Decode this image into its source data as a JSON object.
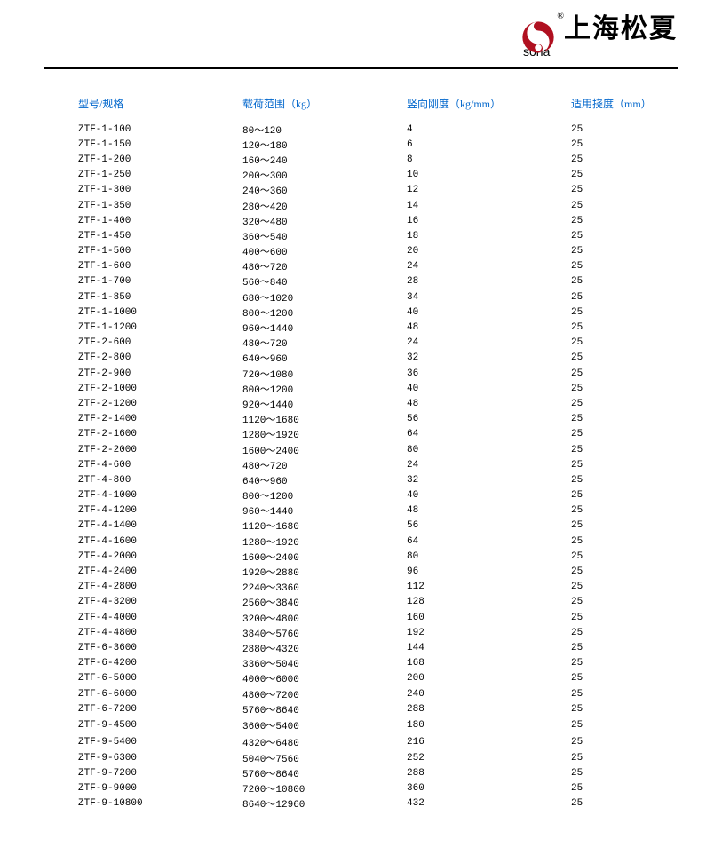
{
  "header": {
    "brand_cn": "上海松夏",
    "brand_en": "sona",
    "reg_mark": "®",
    "logo_color": "#b01020"
  },
  "table": {
    "header_color": "#0066cc",
    "text_color": "#000000",
    "font_size_header": 12,
    "font_size_body": 11,
    "columns": [
      "型号/规格",
      "载荷范围（kg）",
      "竖向刚度（kg/mm）",
      "适用挠度（mm）"
    ],
    "rows": [
      [
        "ZTF-1-100",
        "80～120",
        "4",
        "25"
      ],
      [
        "ZTF-1-150",
        "120～180",
        "6",
        "25"
      ],
      [
        "ZTF-1-200",
        "160～240",
        "8",
        "25"
      ],
      [
        "ZTF-1-250",
        "200～300",
        "10",
        "25"
      ],
      [
        "ZTF-1-300",
        "240～360",
        "12",
        "25"
      ],
      [
        "ZTF-1-350",
        "280～420",
        "14",
        "25"
      ],
      [
        "ZTF-1-400",
        "320～480",
        "16",
        "25"
      ],
      [
        "ZTF-1-450",
        "360～540",
        "18",
        "25"
      ],
      [
        "ZTF-1-500",
        "400～600",
        "20",
        "25"
      ],
      [
        "ZTF-1-600",
        "480～720",
        "24",
        "25"
      ],
      [
        "ZTF-1-700",
        "560～840",
        "28",
        "25"
      ],
      [
        "ZTF-1-850",
        "680～1020",
        "34",
        "25"
      ],
      [
        "ZTF-1-1000",
        "800～1200",
        "40",
        "25"
      ],
      [
        "ZTF-1-1200",
        "960～1440",
        "48",
        "25"
      ],
      [
        "ZTF-2-600",
        "480～720",
        "24",
        "25"
      ],
      [
        "ZTF-2-800",
        "640～960",
        "32",
        "25"
      ],
      [
        "ZTF-2-900",
        "720～1080",
        "36",
        "25"
      ],
      [
        "ZTF-2-1000",
        "800～1200",
        "40",
        "25"
      ],
      [
        "ZTF-2-1200",
        "920～1440",
        "48",
        "25"
      ],
      [
        "ZTF-2-1400",
        "1120～1680",
        "56",
        "25"
      ],
      [
        "ZTF-2-1600",
        "1280～1920",
        "64",
        "25"
      ],
      [
        "ZTF-2-2000",
        "1600～2400",
        "80",
        "25"
      ],
      [
        "ZTF-4-600",
        "480～720",
        "24",
        "25"
      ],
      [
        "ZTF-4-800",
        "640～960",
        "32",
        "25"
      ],
      [
        "ZTF-4-1000",
        "800～1200",
        "40",
        "25"
      ],
      [
        "ZTF-4-1200",
        "960～1440",
        "48",
        "25"
      ],
      [
        "ZTF-4-1400",
        "1120～1680",
        "56",
        "25"
      ],
      [
        "ZTF-4-1600",
        "1280～1920",
        "64",
        "25"
      ],
      [
        "ZTF-4-2000",
        "1600～2400",
        "80",
        "25"
      ],
      [
        "ZTF-4-2400",
        "1920～2880",
        "96",
        "25"
      ],
      [
        "ZTF-4-2800",
        "2240～3360",
        "112",
        "25"
      ],
      [
        "ZTF-4-3200",
        "2560～3840",
        "128",
        "25"
      ],
      [
        "ZTF-4-4000",
        "3200～4800",
        "160",
        "25"
      ],
      [
        "ZTF-4-4800",
        "3840～5760",
        "192",
        "25"
      ],
      [
        "ZTF-6-3600",
        "2880～4320",
        "144",
        "25"
      ],
      [
        "ZTF-6-4200",
        "3360～5040",
        "168",
        "25"
      ],
      [
        "ZTF-6-5000",
        "4000～6000",
        "200",
        "25"
      ],
      [
        "ZTF-6-6000",
        "4800～7200",
        "240",
        "25"
      ],
      [
        "ZTF-6-7200",
        "5760～8640",
        "288",
        "25"
      ],
      [
        "ZTF-9-4500",
        "3600～5400",
        "180",
        "25"
      ],
      [
        "ZTF-9-5400",
        "4320～6480",
        "216",
        "25"
      ],
      [
        "ZTF-9-6300",
        "5040～7560",
        "252",
        "25"
      ],
      [
        "ZTF-9-7200",
        "5760～8640",
        "288",
        "25"
      ],
      [
        "ZTF-9-9000",
        "7200～10800",
        "360",
        "25"
      ],
      [
        "ZTF-9-10800",
        "8640～12960",
        "432",
        "25"
      ]
    ],
    "gap_after_indices": [
      39,
      40
    ]
  }
}
